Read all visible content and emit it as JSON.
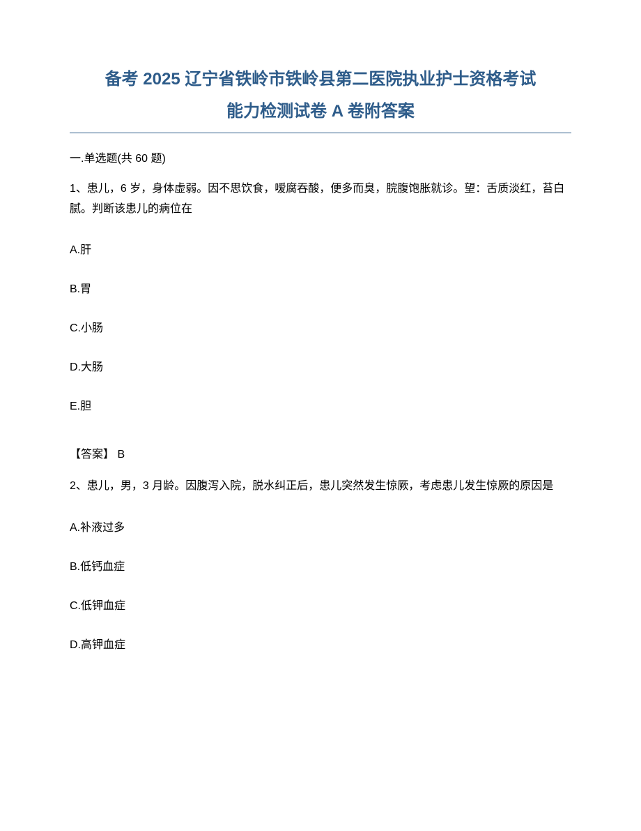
{
  "title": {
    "line1": "备考 2025 辽宁省铁岭市铁岭县第二医院执业护士资格考试",
    "line2": "能力检测试卷 A 卷附答案",
    "color": "#2e5c8a",
    "fontsize": 24
  },
  "divider_color": "#2e5c8a",
  "section_header": "一.单选题(共 60 题)",
  "questions": [
    {
      "number": "1",
      "text": "1、患儿，6 岁，身体虚弱。因不思饮食，嗳腐吞酸，便多而臭，脘腹饱胀就诊。望：舌质淡红，苔白腻。判断该患儿的病位在",
      "options": [
        {
          "label": "A.肝"
        },
        {
          "label": "B.胃"
        },
        {
          "label": "C.小肠"
        },
        {
          "label": "D.大肠"
        },
        {
          "label": "E.胆"
        }
      ],
      "answer": "【答案】 B"
    },
    {
      "number": "2",
      "text": "2、患儿，男，3 月龄。因腹泻入院，脱水纠正后，患儿突然发生惊厥，考虑患儿发生惊厥的原因是",
      "options": [
        {
          "label": "A.补液过多"
        },
        {
          "label": "B.低钙血症"
        },
        {
          "label": "C.低钾血症"
        },
        {
          "label": "D.高钾血症"
        }
      ]
    }
  ],
  "text_color": "#000000",
  "background_color": "#ffffff",
  "body_fontsize": 16
}
